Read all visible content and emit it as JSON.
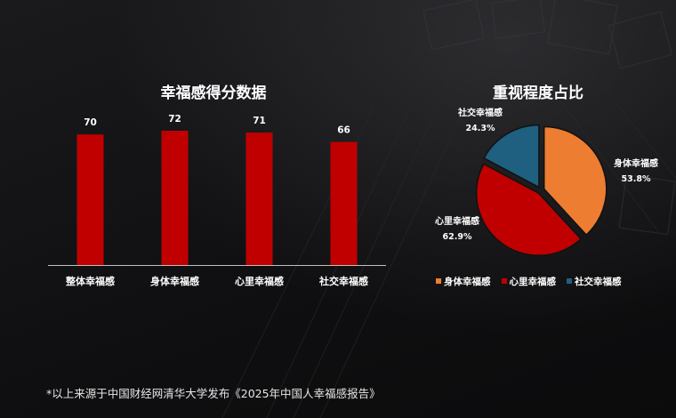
{
  "colors": {
    "bar": "#c00000",
    "axis": "#bfbfbf",
    "body": "#ed7d31",
    "heart": "#c00000",
    "social": "#1f5f80"
  },
  "bar_title": "幸福感得分数据",
  "pie_title": "重视程度占比",
  "footnote": "*以上来源于中国财经网清华大学发布《2025年中国人幸福感报告》",
  "chart_data": [
    {
      "type": "bar",
      "title": "幸福感得分数据",
      "categories": [
        "整体幸福感",
        "身体幸福感",
        "心里幸福感",
        "社交幸福感"
      ],
      "values": [
        70,
        72,
        71,
        66
      ],
      "data_labels": [
        "70",
        "72",
        "71",
        "66"
      ],
      "grid": false
    },
    {
      "type": "pie",
      "title": "重视程度占比",
      "labels": [
        "身体幸福感",
        "心里幸福感",
        "社交幸福感"
      ],
      "values": [
        53.8,
        62.9,
        24.3
      ],
      "value_labels": [
        "53.8%",
        "62.9%",
        "24.3%"
      ],
      "legend": [
        "身体幸福感",
        "心里幸福感",
        "社交幸福感"
      ],
      "legend_position": "bottom"
    }
  ]
}
